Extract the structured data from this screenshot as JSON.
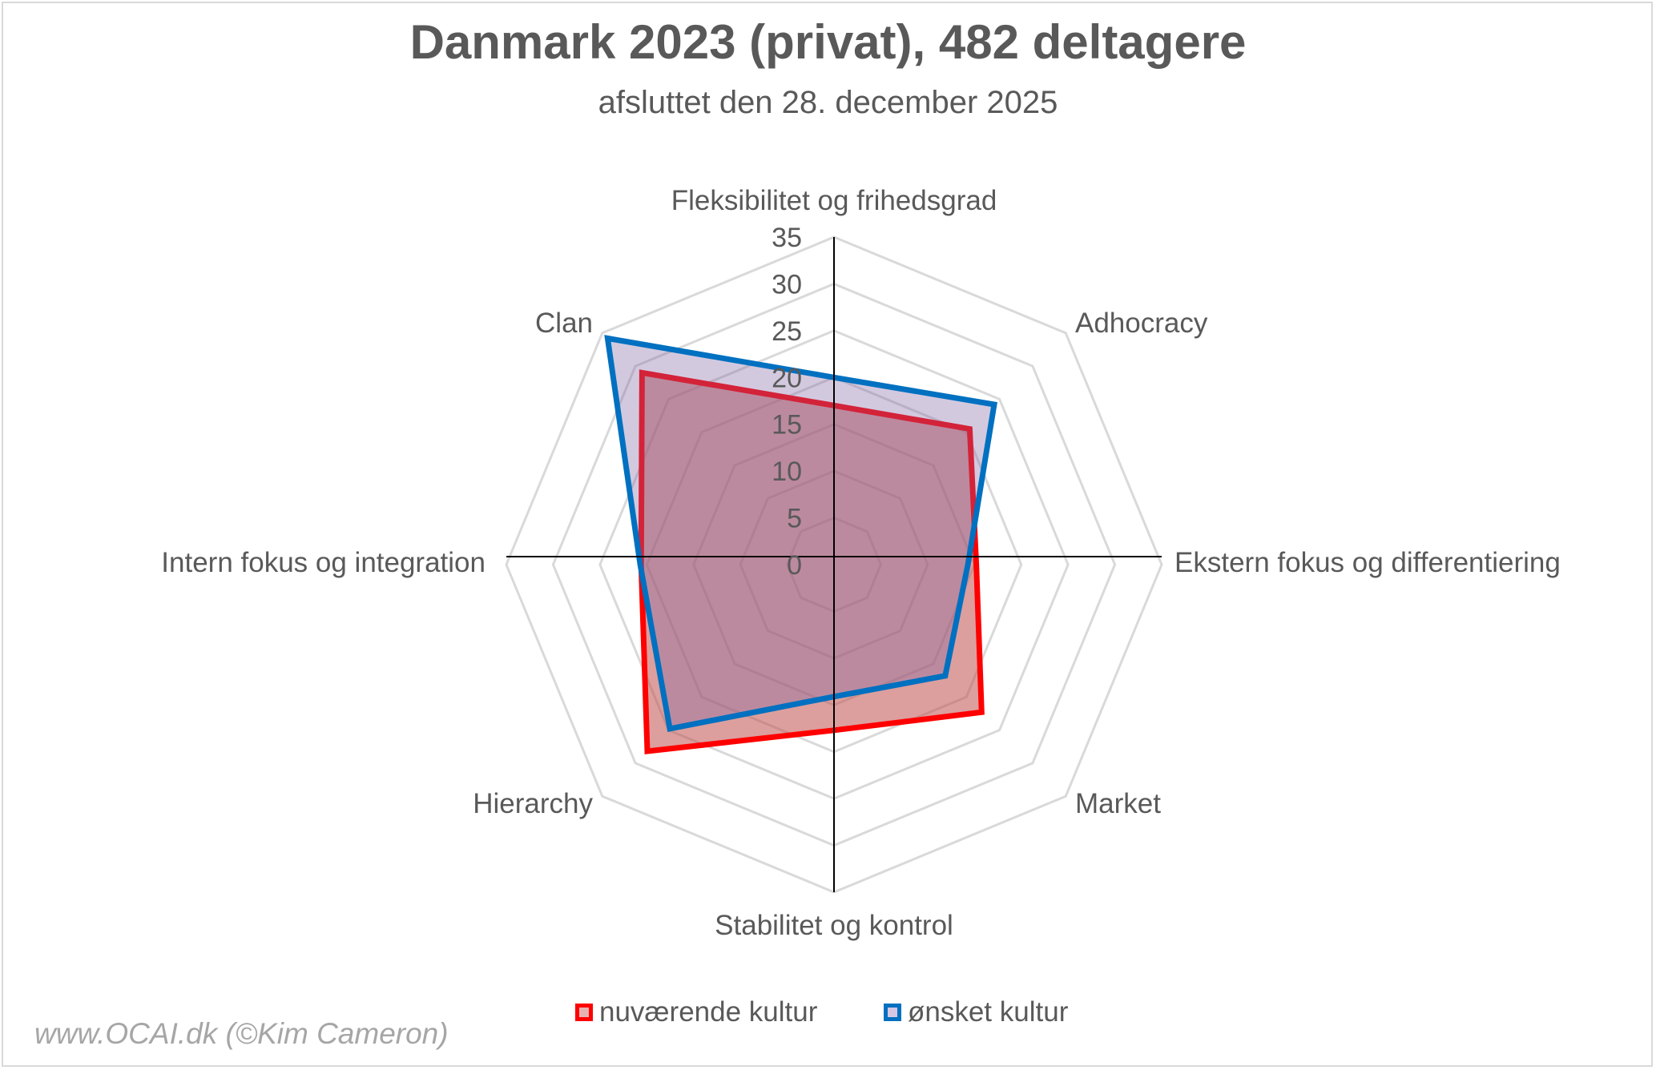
{
  "chart_data": {
    "type": "radar",
    "title": "Danmark 2023 (privat), 482 deltagere",
    "subtitle": "afsluttet den 28. december 2025",
    "axes": [
      "Fleksibilitet og frihedsgrad",
      "Adhocracy",
      "Ekstern fokus og differentiering",
      "Market",
      "Stabilitet og kontrol",
      "Hierarchy",
      "Intern fokus og integration",
      "Clan"
    ],
    "rlim": [
      0,
      35
    ],
    "ticks": [
      "0",
      "5",
      "10",
      "15",
      "20",
      "25",
      "30",
      "35"
    ],
    "tick_values": [
      0,
      5,
      10,
      15,
      20,
      25,
      30,
      35
    ],
    "grid": true,
    "legend_position": "bottom",
    "series": [
      {
        "name": "nuværende kultur",
        "values": [
          17.0,
          20.5,
          15.2,
          22.3,
          17.7,
          28.2,
          20.6,
          29.0
        ],
        "stroke": "#FF0000",
        "fill": "#C0504D"
      },
      {
        "name": "ønsket kultur",
        "values": [
          20.0,
          24.2,
          14.3,
          16.8,
          14.1,
          24.8,
          20.7,
          34.2
        ],
        "stroke": "#0070C0",
        "fill": "#8064A2"
      }
    ]
  },
  "watermark": "www.OCAI.dk (©Kim Cameron)"
}
